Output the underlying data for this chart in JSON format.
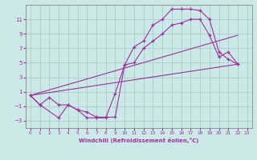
{
  "xlabel": "Windchill (Refroidissement éolien,°C)",
  "background_color": "#cce8e8",
  "grid_color": "#aacccc",
  "line_color": "#993399",
  "xlim": [
    -0.5,
    23.5
  ],
  "ylim": [
    -4,
    13
  ],
  "yticks": [
    -3,
    -1,
    1,
    3,
    5,
    7,
    9,
    11
  ],
  "xticks": [
    0,
    1,
    2,
    3,
    4,
    5,
    6,
    7,
    8,
    9,
    10,
    11,
    12,
    13,
    14,
    15,
    16,
    17,
    18,
    19,
    20,
    21,
    22,
    23
  ],
  "series1_x": [
    0,
    1,
    3,
    4,
    5,
    6,
    7,
    8,
    9,
    10,
    11,
    12,
    13,
    14,
    15,
    16,
    17,
    18,
    19,
    20,
    21,
    22
  ],
  "series1_y": [
    0.5,
    -0.8,
    -2.6,
    -0.8,
    -1.5,
    -2.6,
    -2.6,
    -2.6,
    0.8,
    4.7,
    7.2,
    8.0,
    10.2,
    11.0,
    12.4,
    12.4,
    12.4,
    12.2,
    11.0,
    6.5,
    5.5,
    4.8
  ],
  "series2_x": [
    0,
    1,
    2,
    3,
    4,
    5,
    6,
    7,
    8,
    9,
    10,
    11,
    12,
    13,
    14,
    15,
    16,
    17,
    18,
    19,
    20,
    21,
    22
  ],
  "series2_y": [
    0.5,
    -0.8,
    0.2,
    -0.8,
    -0.8,
    -1.5,
    -1.8,
    -2.5,
    -2.5,
    -2.5,
    4.7,
    5.0,
    7.0,
    8.0,
    9.0,
    10.2,
    10.5,
    11.0,
    11.0,
    8.8,
    5.8,
    6.5,
    4.8
  ],
  "line1_x": [
    0,
    22
  ],
  "line1_y": [
    0.5,
    4.8
  ],
  "line2_x": [
    0,
    22
  ],
  "line2_y": [
    0.5,
    8.8
  ]
}
